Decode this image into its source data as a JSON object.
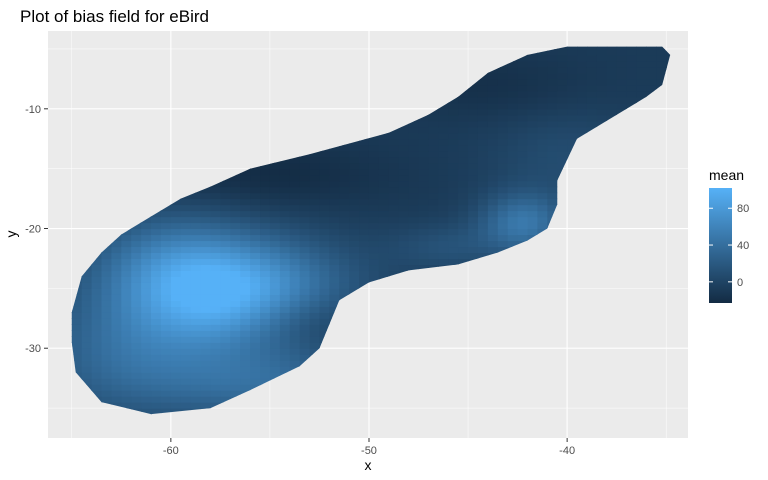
{
  "chart_data": {
    "type": "heatmap",
    "title": "Plot of bias field for eBird",
    "xlabel": "x",
    "ylabel": "y",
    "xlim": [
      -66.2,
      -33.9
    ],
    "ylim": [
      -37.5,
      -3.5
    ],
    "x_ticks": [
      -60,
      -50,
      -40
    ],
    "y_ticks": [
      -10,
      -20,
      -30
    ],
    "x_tick_labels": [
      "-60",
      "-50",
      "-40"
    ],
    "y_tick_labels": [
      "-10",
      "-20",
      "-30"
    ],
    "grid": true,
    "legend": {
      "title": "mean",
      "placement": "right",
      "range": [
        -23,
        102
      ],
      "breaks": [
        80,
        40,
        0
      ],
      "break_labels": [
        "80",
        "40",
        "0"
      ],
      "low_color": "#132B43",
      "high_color": "#56B1F7"
    },
    "region_outline": [
      [
        -65,
        -27
      ],
      [
        -64.5,
        -24
      ],
      [
        -63.5,
        -22
      ],
      [
        -62.5,
        -20.5
      ],
      [
        -61,
        -19
      ],
      [
        -59.5,
        -17.5
      ],
      [
        -58,
        -16.5
      ],
      [
        -56,
        -15
      ],
      [
        -53,
        -13.8
      ],
      [
        -49,
        -12
      ],
      [
        -47,
        -10.5
      ],
      [
        -45.5,
        -9
      ],
      [
        -44,
        -7
      ],
      [
        -42,
        -5.5
      ],
      [
        -40,
        -4.8
      ],
      [
        -35.2,
        -4.8
      ],
      [
        -34.8,
        -5.5
      ],
      [
        -35.2,
        -8
      ],
      [
        -36,
        -9
      ],
      [
        -38,
        -11
      ],
      [
        -39.5,
        -12.5
      ],
      [
        -40.5,
        -16
      ],
      [
        -40.5,
        -18
      ],
      [
        -41,
        -20
      ],
      [
        -42,
        -21
      ],
      [
        -43.5,
        -22
      ],
      [
        -45.5,
        -23
      ],
      [
        -48,
        -23.5
      ],
      [
        -50,
        -24.5
      ],
      [
        -51.5,
        -26
      ],
      [
        -52,
        -28
      ],
      [
        -52.5,
        -30
      ],
      [
        -53.5,
        -31.5
      ],
      [
        -56,
        -33.5
      ],
      [
        -58,
        -35
      ],
      [
        -61,
        -35.5
      ],
      [
        -63.5,
        -34.5
      ],
      [
        -64.8,
        -32
      ],
      [
        -65,
        -29.5
      ]
    ],
    "high_value_centers": [
      {
        "x": -57.2,
        "y": -25.3,
        "mean": 100
      },
      {
        "x": -42.2,
        "y": -19.5,
        "mean": 55
      }
    ],
    "low_value_centers": [
      {
        "x": -53.5,
        "y": -27.5,
        "mean": -12
      },
      {
        "x": -55,
        "y": -17,
        "mean": -18
      }
    ]
  }
}
